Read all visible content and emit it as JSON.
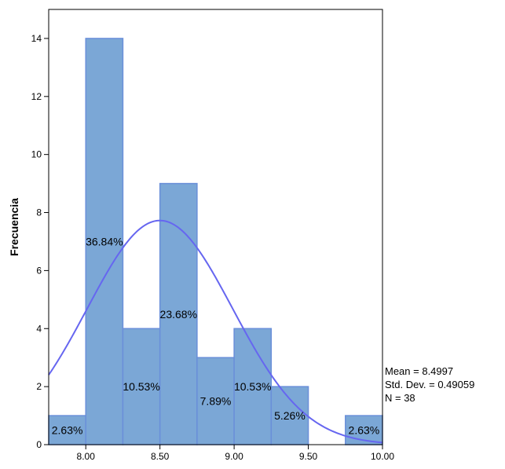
{
  "chart_data": {
    "type": "bar",
    "ylabel": "Frecuencia",
    "xlim": [
      7.75,
      10.0
    ],
    "ylim": [
      0,
      15
    ],
    "x_ticks": [
      8.0,
      8.5,
      9.0,
      9.5,
      10.0
    ],
    "x_tick_labels": [
      "8.00",
      "8.50",
      "9.00",
      "9.50",
      "10.00"
    ],
    "y_ticks": [
      0,
      2,
      4,
      6,
      8,
      10,
      12,
      14
    ],
    "y_tick_labels": [
      "0",
      "2",
      "4",
      "6",
      "8",
      "10",
      "12",
      "14"
    ],
    "bin_width": 0.25,
    "bins": [
      {
        "start": 7.75,
        "end": 8.0,
        "count": 1,
        "label": "2.63%"
      },
      {
        "start": 8.0,
        "end": 8.25,
        "count": 14,
        "label": "36.84%"
      },
      {
        "start": 8.25,
        "end": 8.5,
        "count": 4,
        "label": "10.53%"
      },
      {
        "start": 8.5,
        "end": 8.75,
        "count": 9,
        "label": "23.68%"
      },
      {
        "start": 8.75,
        "end": 9.0,
        "count": 3,
        "label": "7.89%"
      },
      {
        "start": 9.0,
        "end": 9.25,
        "count": 4,
        "label": "10.53%"
      },
      {
        "start": 9.25,
        "end": 9.5,
        "count": 2,
        "label": "5.26%"
      },
      {
        "start": 9.5,
        "end": 9.75,
        "count": 0,
        "label": ""
      },
      {
        "start": 9.75,
        "end": 10.0,
        "count": 1,
        "label": "2.63%"
      }
    ],
    "normal_curve": {
      "mean": 8.4997,
      "std_dev": 0.49059,
      "n": 38
    },
    "stats_text": [
      "Mean = 8.4997",
      "Std. Dev. = 0.49059",
      "N = 38"
    ],
    "bar_color": "#7ba7d6",
    "bar_edge_color": "#6a8fd9",
    "curve_color": "#6666f0"
  }
}
